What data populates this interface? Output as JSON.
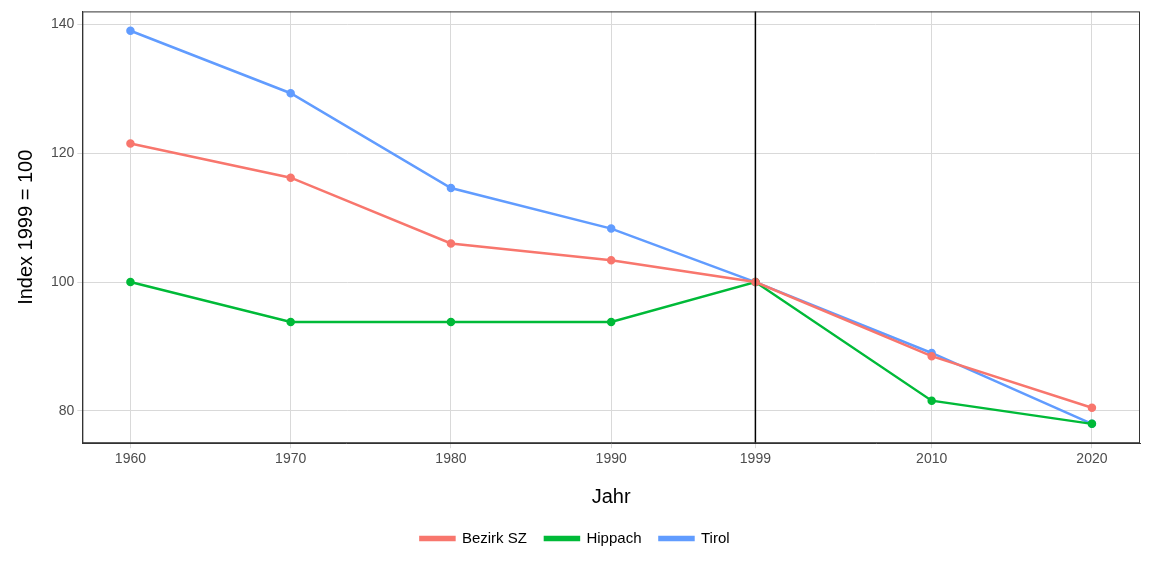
{
  "chart_data": {
    "type": "line",
    "x_label": "Jahr",
    "y_label": "Index 1999 = 100",
    "x": [
      1960,
      1970,
      1980,
      1990,
      1999,
      2010,
      2020
    ],
    "series": [
      {
        "name": "Bezirk SZ",
        "color": "#F8766D",
        "values": [
          121.5,
          116.2,
          106,
          103.4,
          100,
          88.5,
          80.5
        ]
      },
      {
        "name": "Hippach",
        "color": "#00BA38",
        "values": [
          100,
          93.8,
          93.8,
          93.8,
          100,
          81.6,
          78
        ]
      },
      {
        "name": "Tirol",
        "color": "#619CFF",
        "values": [
          139,
          129.3,
          114.6,
          108.3,
          100,
          89,
          78
        ]
      }
    ],
    "xlim": [
      1957,
      2023
    ],
    "xticks": [
      1960,
      1970,
      1980,
      1990,
      1999,
      2010,
      2020
    ],
    "ylim": [
      75,
      142
    ],
    "yticks": [
      80,
      100,
      120,
      140
    ],
    "vline": 1999,
    "grid": true,
    "legend": "bottom",
    "marker": "circle"
  }
}
